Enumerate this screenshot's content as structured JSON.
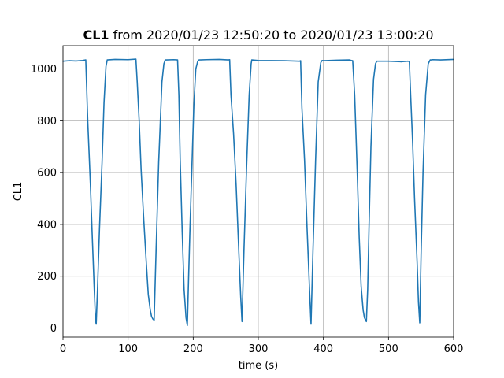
{
  "chart_data": {
    "type": "line",
    "title": {
      "bold_part": "CL1",
      "rest": " from 2020/01/23 12:50:20 to 2020/01/23 13:00:20"
    },
    "xlabel": "time (s)",
    "ylabel": "CL1",
    "xlim": [
      0,
      600
    ],
    "ylim": [
      -35,
      1090
    ],
    "x_ticks": [
      0,
      100,
      200,
      300,
      400,
      500,
      600
    ],
    "y_ticks": [
      0,
      200,
      400,
      600,
      800,
      1000
    ],
    "x_tick_labels": [
      "0",
      "100",
      "200",
      "300",
      "400",
      "500",
      "600"
    ],
    "y_tick_labels": [
      "0",
      "200",
      "400",
      "600",
      "800",
      "1000"
    ],
    "grid": true,
    "series": [
      {
        "color": "#1f77b4",
        "x": [
          0,
          10,
          20,
          30,
          35,
          38,
          42,
          45,
          48,
          50,
          51,
          53,
          56,
          60,
          63,
          66,
          68,
          80,
          100,
          112,
          114,
          117,
          120,
          124,
          128,
          131,
          134,
          136,
          138,
          140,
          143,
          147,
          152,
          155,
          157,
          159,
          170,
          176,
          178,
          180,
          183,
          186,
          189,
          191,
          193,
          195,
          198,
          201,
          204,
          207,
          209,
          220,
          240,
          254,
          256,
          258,
          262,
          266,
          270,
          273,
          275,
          278,
          282,
          286,
          289,
          290,
          300,
          340,
          363,
          365,
          367,
          371,
          375,
          379,
          381,
          384,
          388,
          392,
          396,
          398,
          400,
          420,
          440,
          443,
          445,
          448,
          452,
          455,
          458,
          461,
          463,
          466,
          468,
          470,
          473,
          477,
          480,
          482,
          484,
          500,
          520,
          530,
          532,
          534,
          537,
          540,
          544,
          546,
          548,
          550,
          553,
          557,
          561,
          564,
          566,
          568,
          580,
          600
        ],
        "y": [
          1030,
          1032,
          1031,
          1033,
          1035,
          800,
          560,
          350,
          150,
          30,
          15,
          150,
          380,
          640,
          870,
          1010,
          1035,
          1037,
          1036,
          1038,
          950,
          800,
          610,
          420,
          250,
          130,
          70,
          45,
          35,
          30,
          300,
          640,
          950,
          1020,
          1035,
          1035,
          1036,
          1035,
          900,
          650,
          380,
          150,
          40,
          10,
          200,
          380,
          620,
          860,
          1000,
          1030,
          1035,
          1036,
          1037,
          1035,
          1036,
          900,
          750,
          550,
          300,
          120,
          25,
          300,
          620,
          900,
          1020,
          1035,
          1033,
          1032,
          1030,
          1032,
          850,
          650,
          380,
          130,
          15,
          300,
          650,
          950,
          1025,
          1033,
          1032,
          1034,
          1035,
          1033,
          1032,
          900,
          600,
          350,
          160,
          70,
          40,
          25,
          150,
          380,
          700,
          960,
          1020,
          1030,
          1030,
          1030,
          1028,
          1030,
          1029,
          900,
          720,
          500,
          250,
          100,
          20,
          280,
          600,
          900,
          1020,
          1035,
          1035,
          1036,
          1035,
          1037
        ]
      }
    ]
  }
}
